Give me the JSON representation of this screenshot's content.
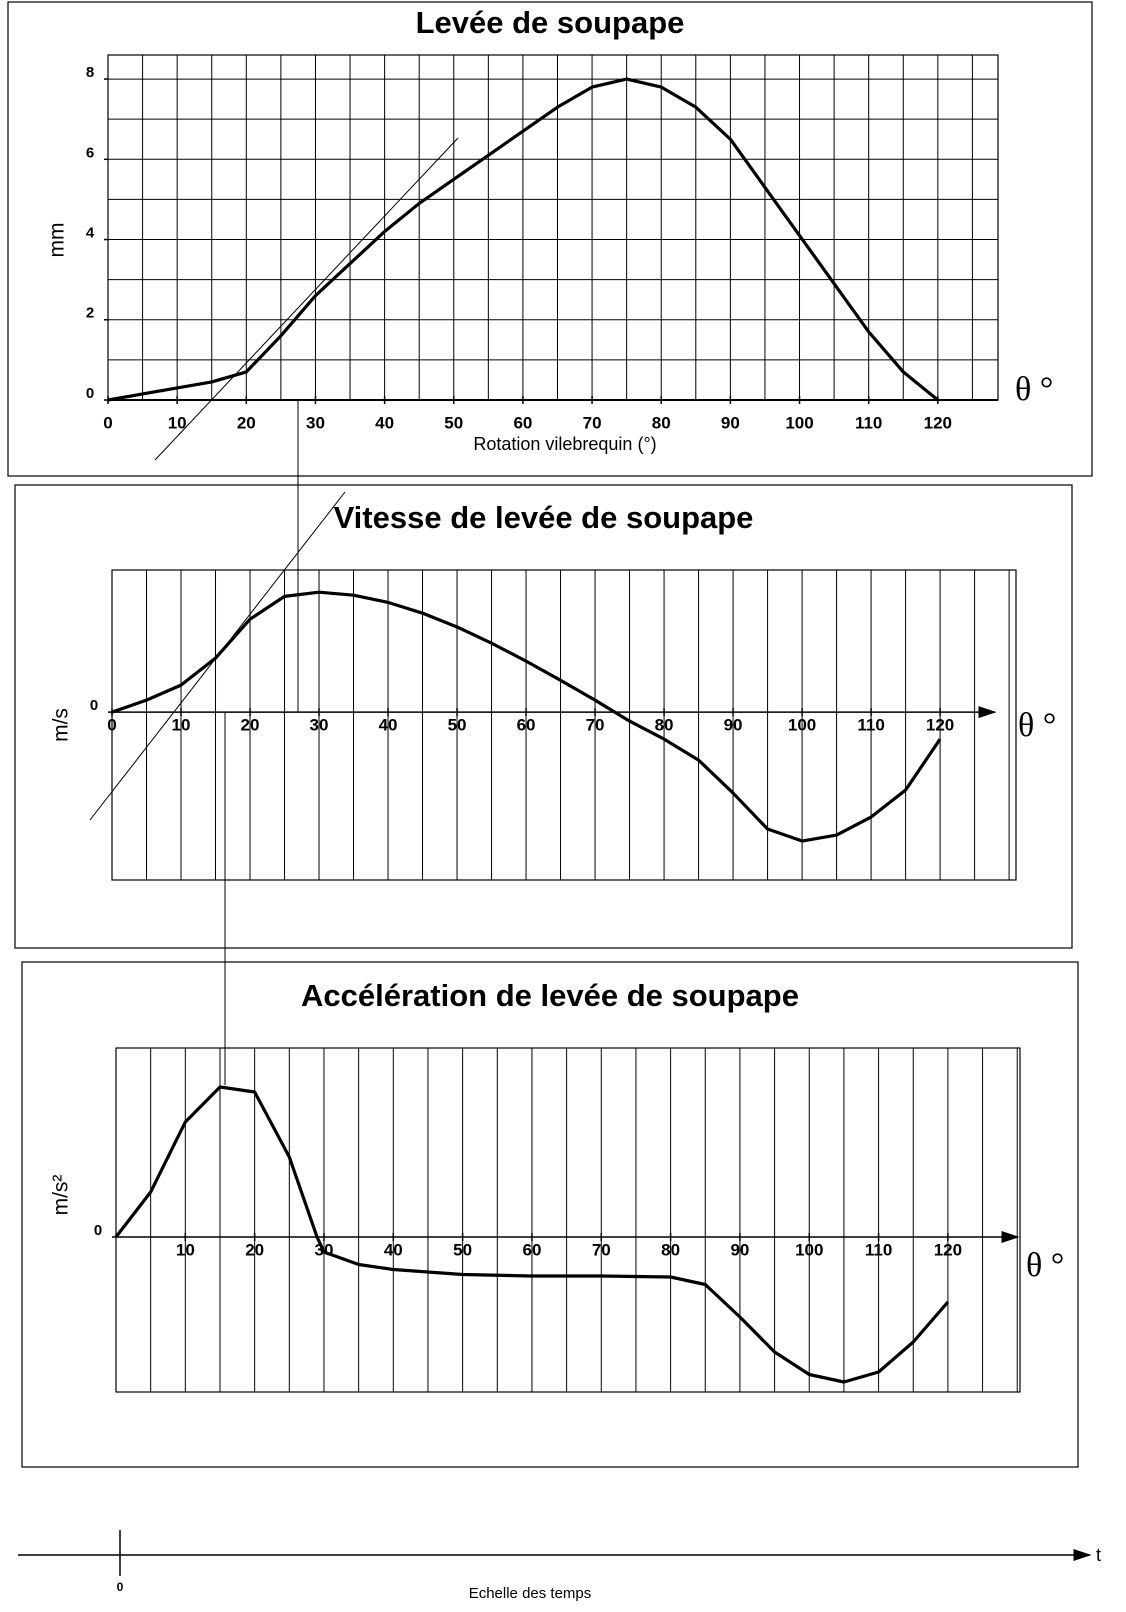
{
  "chart_data": [
    {
      "type": "line",
      "title": "Levée de soupape",
      "y_label": "mm",
      "x_label": "Rotation vilebrequin (°)",
      "axis_symbol": "θ °",
      "xlim": [
        0,
        128.7
      ],
      "ylim": [
        0,
        8.6
      ],
      "xticks": [
        0,
        10,
        20,
        30,
        40,
        50,
        60,
        70,
        80,
        90,
        100,
        110,
        120
      ],
      "yticks": [
        0,
        2,
        4,
        6,
        8
      ],
      "grid": true,
      "xgrid_step": 5,
      "ygrid_step": 1,
      "color": "#000000",
      "x": [
        0,
        5,
        10,
        15,
        20,
        25,
        30,
        35,
        40,
        45,
        50,
        55,
        60,
        65,
        70,
        75,
        80,
        85,
        90,
        95,
        100,
        105,
        110,
        115,
        120
      ],
      "values": [
        0,
        0.15,
        0.3,
        0.45,
        0.7,
        1.6,
        2.6,
        3.4,
        4.2,
        4.9,
        5.5,
        6.1,
        6.7,
        7.3,
        7.8,
        8.0,
        7.8,
        7.3,
        6.5,
        5.3,
        4.1,
        2.9,
        1.7,
        0.7,
        0
      ]
    },
    {
      "type": "line",
      "title": "Vitesse de levée de soupape",
      "y_label": "m/s",
      "axis_symbol": "θ °",
      "xlim": [
        0,
        131
      ],
      "ylim": [
        -2.8,
        2.37
      ],
      "xticks": [
        0,
        10,
        20,
        30,
        40,
        50,
        60,
        70,
        80,
        90,
        100,
        110,
        120
      ],
      "yticks": [
        0
      ],
      "grid": true,
      "xgrid_step": 5,
      "color": "#000000",
      "x": [
        0,
        5,
        10,
        15,
        20,
        25,
        30,
        35,
        40,
        45,
        50,
        55,
        60,
        65,
        70,
        75,
        80,
        85,
        90,
        95,
        100,
        105,
        110,
        115,
        120
      ],
      "values": [
        0,
        0.2,
        0.45,
        0.9,
        1.55,
        1.93,
        2.0,
        1.95,
        1.83,
        1.65,
        1.42,
        1.15,
        0.85,
        0.53,
        0.2,
        -0.15,
        -0.45,
        -0.8,
        -1.35,
        -1.95,
        -2.15,
        -2.05,
        -1.75,
        -1.3,
        -0.45
      ]
    },
    {
      "type": "line",
      "title": "Accélération de levée de soupape",
      "y_label": "m/s²",
      "axis_symbol": "θ °",
      "xlim": [
        0,
        130.4
      ],
      "ylim": [
        -3.1,
        3.78
      ],
      "xticks": [
        10,
        20,
        30,
        40,
        50,
        60,
        70,
        80,
        90,
        100,
        110,
        120
      ],
      "yticks": [
        0
      ],
      "grid": true,
      "xgrid_step": 5,
      "color": "#000000",
      "x": [
        0,
        5,
        10,
        15,
        20,
        25,
        29,
        30,
        35,
        40,
        50,
        60,
        70,
        80,
        85,
        90,
        95,
        100,
        105,
        110,
        115,
        120
      ],
      "values": [
        0,
        0.9,
        2.3,
        3.0,
        2.9,
        1.6,
        0,
        -0.3,
        -0.55,
        -0.65,
        -0.75,
        -0.78,
        -0.78,
        -0.8,
        -0.95,
        -1.6,
        -2.3,
        -2.75,
        -2.9,
        -2.7,
        -2.1,
        -1.3
      ]
    }
  ],
  "time_scale": {
    "zero": "0",
    "label": "Echelle des temps",
    "axis": "t"
  }
}
